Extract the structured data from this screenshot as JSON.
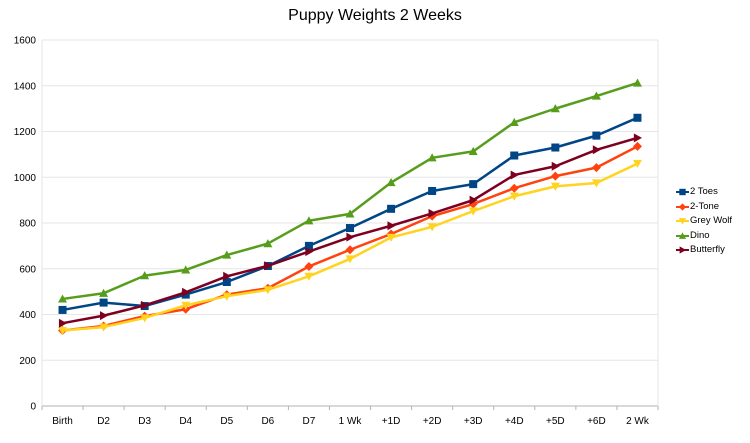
{
  "chart_data": {
    "type": "line",
    "title": "Puppy Weights 2 Weeks",
    "xlabel": "",
    "ylabel": "",
    "ylim": [
      0,
      1600
    ],
    "ytick_step": 200,
    "grid": "horizontal",
    "legend_position": "right",
    "categories": [
      "Birth",
      "D2",
      "D3",
      "D4",
      "D5",
      "D6",
      "D7",
      "1 Wk",
      "+1D",
      "+2D",
      "+3D",
      "+4D",
      "+5D",
      "+6D",
      "2 Wk"
    ],
    "series": [
      {
        "name": "2 Toes",
        "color": "#004586",
        "marker": "square",
        "values": [
          420,
          452,
          437,
          487,
          542,
          612,
          700,
          778,
          862,
          940,
          970,
          1095,
          1130,
          1182,
          1260
        ]
      },
      {
        "name": "2-Tone",
        "color": "#ff420e",
        "marker": "diamond",
        "values": [
          330,
          350,
          393,
          423,
          487,
          515,
          610,
          683,
          752,
          830,
          883,
          952,
          1005,
          1042,
          1135
        ]
      },
      {
        "name": "Grey Wolf",
        "color": "#ffd320",
        "marker": "triangle-down",
        "values": [
          330,
          345,
          385,
          440,
          480,
          508,
          567,
          643,
          737,
          783,
          852,
          917,
          960,
          975,
          1060
        ]
      },
      {
        "name": "Dino",
        "color": "#579d1c",
        "marker": "triangle-up",
        "values": [
          468,
          493,
          570,
          595,
          660,
          710,
          810,
          840,
          977,
          1085,
          1113,
          1240,
          1300,
          1355,
          1412
        ]
      },
      {
        "name": "Butterfly",
        "color": "#7e0021",
        "marker": "triangle-right",
        "values": [
          362,
          395,
          440,
          497,
          567,
          613,
          675,
          738,
          788,
          842,
          900,
          1010,
          1048,
          1120,
          1172
        ]
      }
    ]
  }
}
